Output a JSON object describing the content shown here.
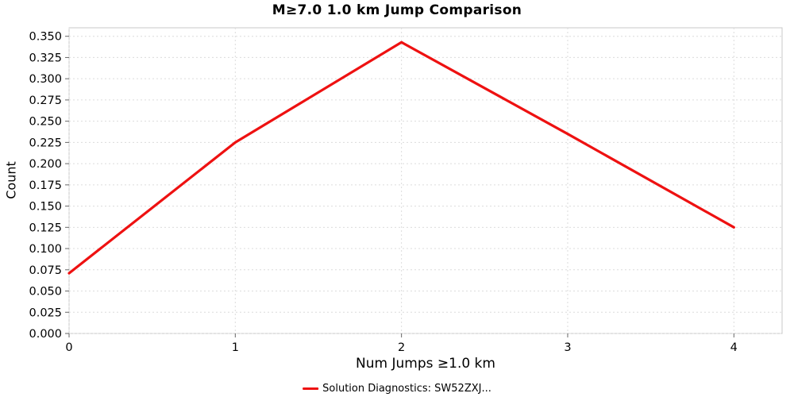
{
  "title": "M≥7.0 1.0 km Jump Comparison",
  "legend": {
    "label": "Solution Diagnostics: SW52ZXJ...",
    "color": "#ee1111"
  },
  "colors": {
    "line": "#ee1111",
    "grid": "#dcdcdc",
    "border": "#c8c8c8",
    "tick": "#666666",
    "text": "#000000",
    "background": "#ffffff"
  },
  "chart_data": {
    "type": "line",
    "title": "M≥7.0 1.0 km Jump Comparison",
    "xlabel": "Num Jumps ≥1.0 km",
    "ylabel": "Count",
    "x": [
      0,
      1,
      2,
      3,
      4
    ],
    "series": [
      {
        "name": "Solution Diagnostics: SW52ZXJ...",
        "color": "#ee1111",
        "values": [
          0.071,
          0.225,
          0.343,
          0.235,
          0.125
        ]
      }
    ],
    "xlim": [
      0,
      4.29
    ],
    "ylim": [
      0,
      0.36
    ],
    "xticks": [
      0,
      1,
      2,
      3,
      4
    ],
    "yticks": [
      0.0,
      0.025,
      0.05,
      0.075,
      0.1,
      0.125,
      0.15,
      0.175,
      0.2,
      0.225,
      0.25,
      0.275,
      0.3,
      0.325,
      0.35
    ],
    "ytick_decimals": 3,
    "grid": true,
    "legend_position": "bottom"
  }
}
